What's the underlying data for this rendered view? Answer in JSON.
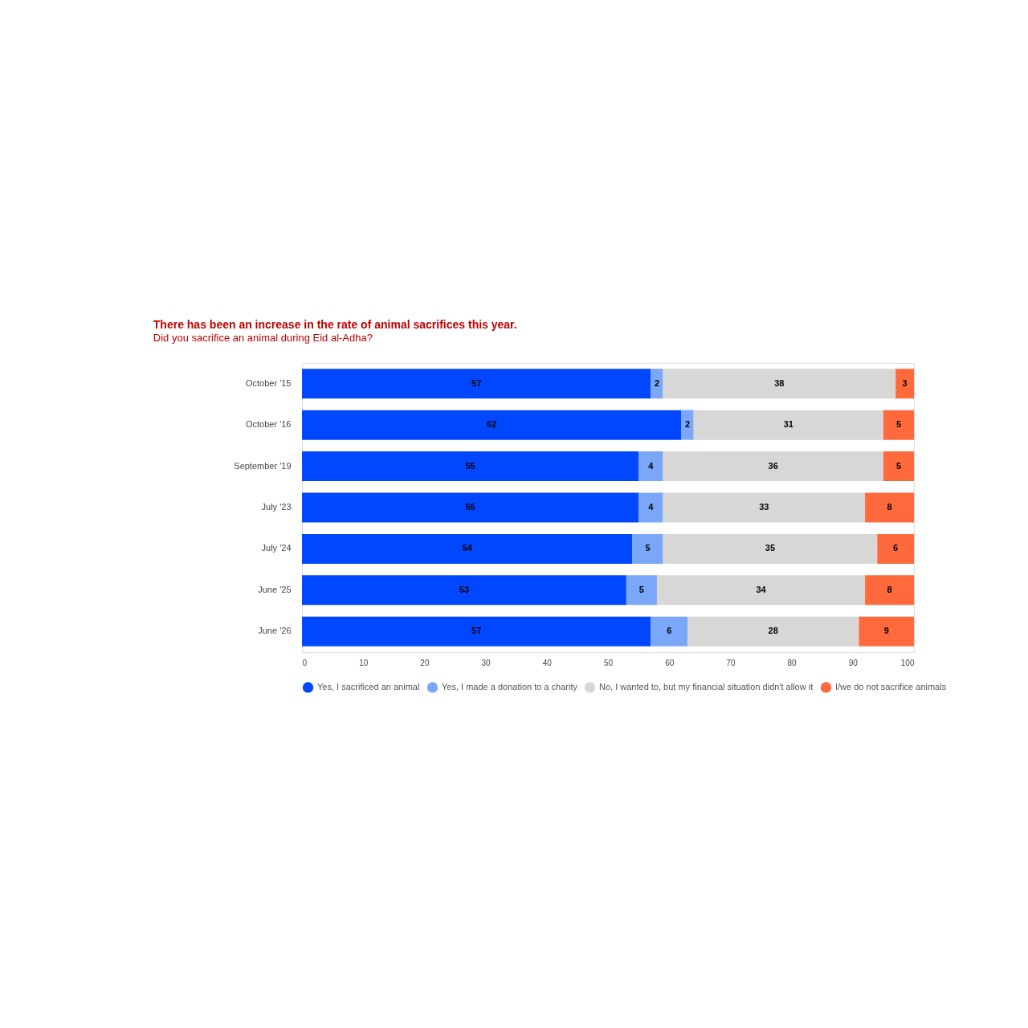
{
  "chart_data": {
    "type": "bar",
    "orientation": "horizontal",
    "stacked": true,
    "title": "There has been an increase in the rate of animal sacrifices this year.",
    "subtitle": "Did you sacrifice an animal during Eid al-Adha?",
    "categories": [
      "October '15",
      "October '16",
      "September '19",
      "July '23",
      "July '24",
      "June '25",
      "June '26"
    ],
    "series": [
      {
        "name": "Yes, I sacrificed an animal",
        "color": "#0047ff",
        "values": [
          57,
          62,
          55,
          55,
          54,
          53,
          57
        ]
      },
      {
        "name": "Yes, I made a donation to a charity",
        "color": "#7aa7f7",
        "values": [
          2,
          2,
          4,
          4,
          5,
          5,
          6
        ]
      },
      {
        "name": "No, I wanted to, but my financial situation didn't allow it",
        "color": "#d9d7d6",
        "values": [
          38,
          31,
          36,
          33,
          35,
          34,
          28
        ]
      },
      {
        "name": "I/we do not sacrifice animals",
        "color": "#ff6a3d",
        "values": [
          3,
          5,
          5,
          8,
          6,
          8,
          9
        ]
      }
    ],
    "xlim": [
      0,
      100
    ],
    "xticks": [
      0,
      10,
      20,
      30,
      40,
      50,
      60,
      70,
      80,
      90,
      100
    ],
    "data_labels": true,
    "legend": "bottom"
  }
}
